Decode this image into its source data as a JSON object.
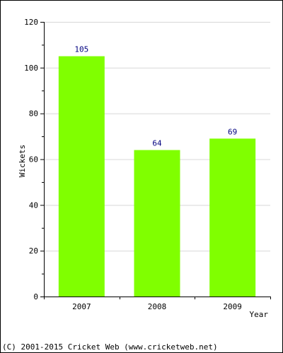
{
  "chart_data": {
    "type": "bar",
    "categories": [
      "2007",
      "2008",
      "2009"
    ],
    "values": [
      105,
      64,
      69
    ],
    "data_labels": [
      "105",
      "64",
      "69"
    ],
    "xlabel": "Year",
    "ylabel": "Wickets",
    "ylim": [
      0,
      120
    ],
    "yticks": [
      0,
      20,
      40,
      60,
      80,
      100,
      120
    ],
    "grid": true,
    "bar_color": "#80ff00",
    "label_color": "#000080",
    "grid_color": "#d8d8d8"
  },
  "footer": {
    "copyright": "(C) 2001-2015 Cricket Web (www.cricketweb.net)"
  }
}
